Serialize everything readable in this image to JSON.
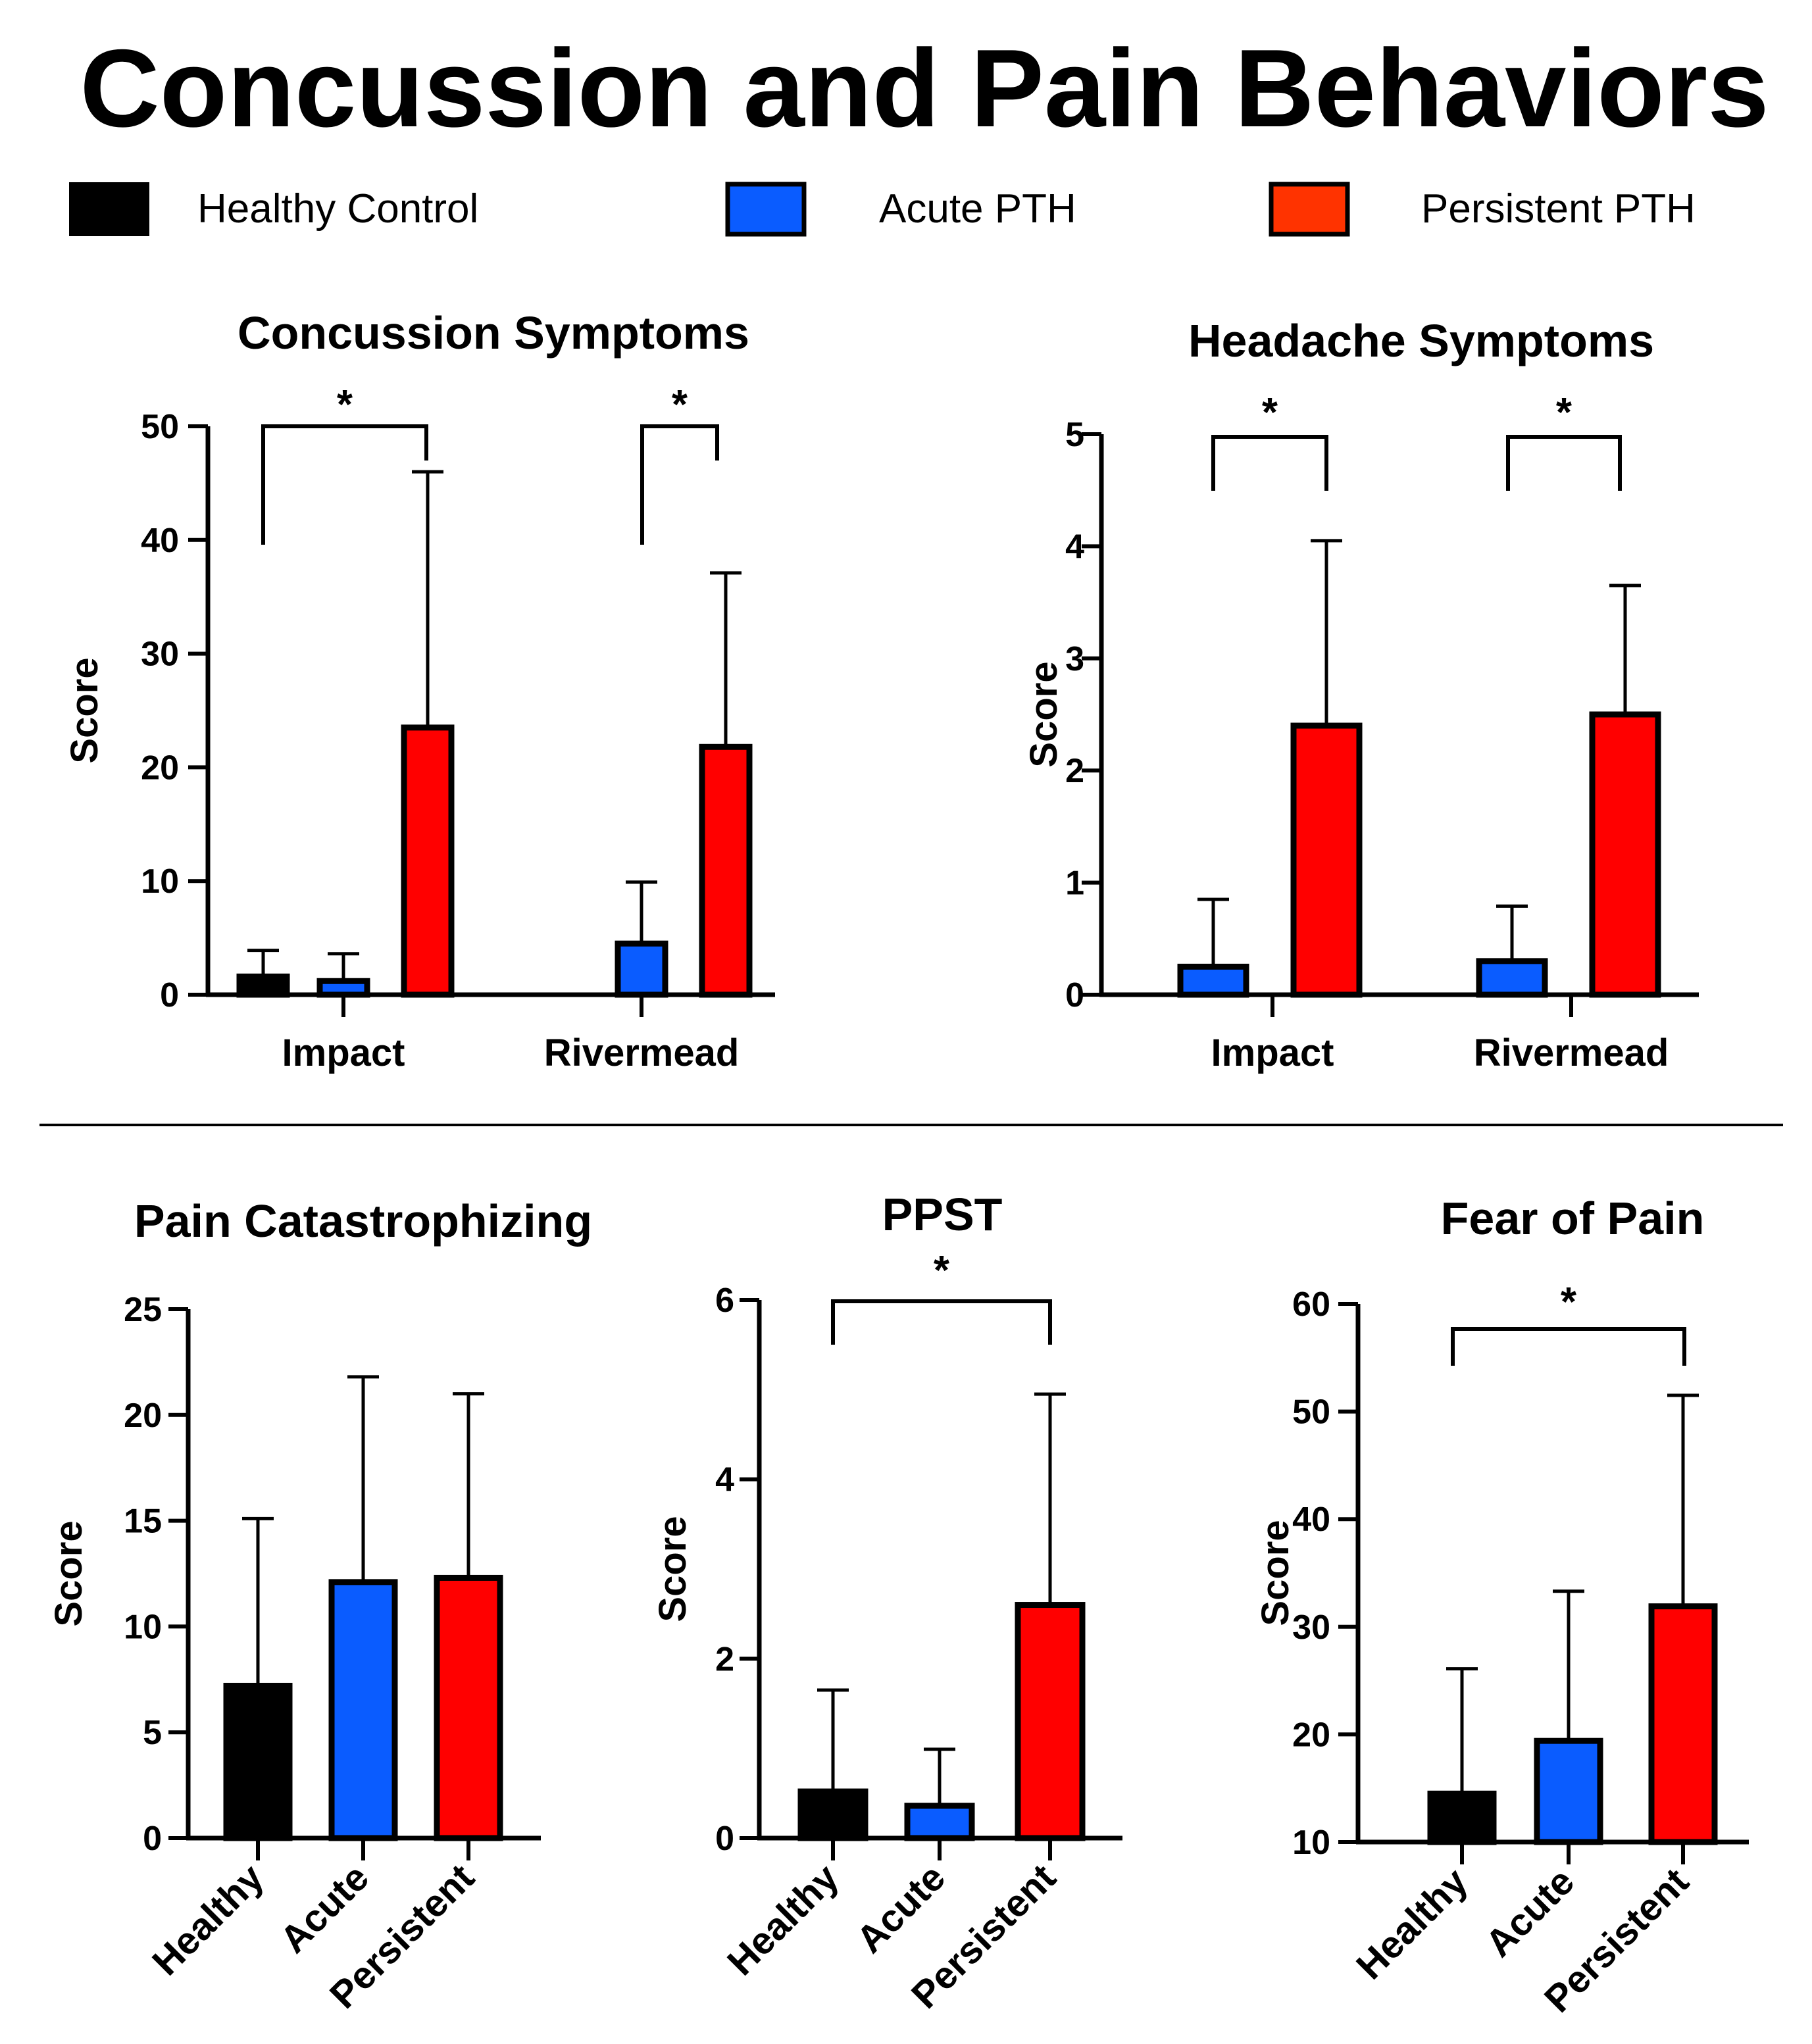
{
  "figure": {
    "title": "Concussion and Pain Behaviors"
  },
  "colors": {
    "healthy": "#000000",
    "acute": "#0a5cff",
    "persistent": "#ff0000",
    "persistent_legend": "#ff3300"
  },
  "legend": [
    {
      "key": "healthy",
      "label": "Healthy Control"
    },
    {
      "key": "acute",
      "label": "Acute PTH"
    },
    {
      "key": "persistent",
      "label": "Persistent PTH"
    }
  ],
  "chart_data": [
    {
      "id": "concussion",
      "type": "bar",
      "title": "Concussion Symptoms",
      "ylabel": "Score",
      "ylim": [
        0,
        50
      ],
      "yticks": [
        "0",
        "10",
        "20",
        "30",
        "40",
        "50"
      ],
      "categories": [
        "Impact",
        "Rivermead"
      ],
      "series": [
        {
          "name": "Healthy Control",
          "key": "healthy",
          "values": [
            1.6,
            null
          ],
          "errors": [
            2.3,
            null
          ]
        },
        {
          "name": "Acute PTH",
          "key": "acute",
          "values": [
            1.2,
            4.5
          ],
          "errors": [
            2.4,
            5.4
          ]
        },
        {
          "name": "Persistent PTH",
          "key": "persistent",
          "values": [
            23.5,
            21.8
          ],
          "errors": [
            22.5,
            15.3
          ]
        }
      ],
      "significance": [
        {
          "label": "*",
          "category": 0,
          "from": "Healthy Control",
          "to": "Persistent PTH"
        },
        {
          "label": "*",
          "category": 1,
          "from": "Acute PTH",
          "to": "Persistent PTH"
        }
      ]
    },
    {
      "id": "headache",
      "type": "bar",
      "title": "Headache Symptoms",
      "ylabel": "Score",
      "ylim": [
        0,
        5
      ],
      "yticks": [
        "0",
        "1",
        "2",
        "3",
        "4",
        "5"
      ],
      "categories": [
        "Impact",
        "Rivermead"
      ],
      "series": [
        {
          "name": "Acute PTH",
          "key": "acute",
          "values": [
            0.25,
            0.3
          ],
          "errors": [
            0.6,
            0.49
          ]
        },
        {
          "name": "Persistent PTH",
          "key": "persistent",
          "values": [
            2.4,
            2.5
          ],
          "errors": [
            1.65,
            1.15
          ]
        }
      ],
      "significance": [
        {
          "label": "*",
          "category": 0,
          "from": "Acute PTH",
          "to": "Persistent PTH"
        },
        {
          "label": "*",
          "category": 1,
          "from": "Acute PTH",
          "to": "Persistent PTH"
        }
      ]
    },
    {
      "id": "catastrophizing",
      "type": "bar",
      "title": "Pain Catastrophizing",
      "ylabel": "Score",
      "ylim": [
        0,
        25
      ],
      "yticks": [
        "0",
        "5",
        "10",
        "15",
        "20",
        "25"
      ],
      "categories": [
        "Healthy",
        "Acute",
        "Persistent"
      ],
      "values": [
        7.2,
        12.1,
        12.3
      ],
      "errors": [
        7.9,
        9.7,
        8.7
      ],
      "keys": [
        "healthy",
        "acute",
        "persistent"
      ],
      "significance": []
    },
    {
      "id": "ppst",
      "type": "bar",
      "title": "PPST",
      "ylabel": "Score",
      "ylim": [
        0,
        6
      ],
      "yticks": [
        "0",
        "2",
        "4",
        "6"
      ],
      "categories": [
        "Healthy",
        "Acute",
        "Persistent"
      ],
      "values": [
        0.52,
        0.36,
        2.6
      ],
      "errors": [
        1.13,
        0.63,
        2.35
      ],
      "keys": [
        "healthy",
        "acute",
        "persistent"
      ],
      "significance": [
        {
          "label": "*",
          "from": "Healthy",
          "to": "Persistent"
        }
      ]
    },
    {
      "id": "fear",
      "type": "bar",
      "title": "Fear of Pain",
      "ylabel": "Score",
      "ylim": [
        10,
        60
      ],
      "yticks": [
        "10",
        "20",
        "30",
        "40",
        "50",
        "60"
      ],
      "categories": [
        "Healthy",
        "Acute",
        "Persistent"
      ],
      "values": [
        14.5,
        19.4,
        31.9
      ],
      "errors": [
        11.6,
        13.9,
        19.6
      ],
      "keys": [
        "healthy",
        "acute",
        "persistent"
      ],
      "significance": [
        {
          "label": "*",
          "from": "Healthy",
          "to": "Persistent"
        }
      ]
    }
  ]
}
